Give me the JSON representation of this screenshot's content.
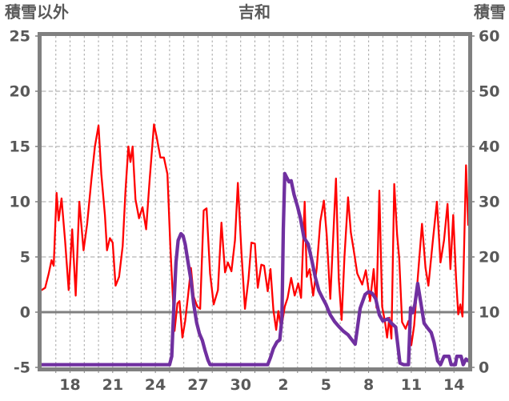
{
  "chart_data": {
    "type": "line",
    "title": "吉和",
    "left_axis": {
      "label": "積雪以外",
      "min": -5,
      "max": 25,
      "ticks": [
        25,
        20,
        15,
        10,
        5,
        0,
        -5
      ]
    },
    "right_axis": {
      "label": "積雪",
      "min": 0,
      "max": 60,
      "ticks": [
        60,
        50,
        40,
        30,
        20,
        10,
        0
      ]
    },
    "x_axis": {
      "domain_start": 16,
      "domain_end": 46,
      "day_grid_step": 1,
      "tick_labels": [
        {
          "day": 18,
          "label": "18"
        },
        {
          "day": 21,
          "label": "21"
        },
        {
          "day": 24,
          "label": "24"
        },
        {
          "day": 27,
          "label": "27"
        },
        {
          "day": 30,
          "label": "30"
        },
        {
          "day": 33,
          "label": "2"
        },
        {
          "day": 36,
          "label": "5"
        },
        {
          "day": 39,
          "label": "8"
        },
        {
          "day": 42,
          "label": "11"
        },
        {
          "day": 45,
          "label": "14"
        }
      ]
    },
    "grid": {
      "h_dashed_left_values": [
        20,
        15,
        10,
        5
      ],
      "zero_line_left": 0
    },
    "colors": {
      "frame": "#808080",
      "grid": "#a3a3a3",
      "zero_line": "#808080",
      "text": "#595959",
      "background": "#ffffff",
      "temperature": "#ff0000",
      "snow": "#7030a0"
    },
    "series": [
      {
        "name": "積雪以外",
        "axis": "left",
        "color_key": "temperature",
        "width": 2.3,
        "points": [
          [
            16.0,
            2.0
          ],
          [
            16.25,
            2.2
          ],
          [
            16.5,
            3.5
          ],
          [
            16.7,
            4.7
          ],
          [
            16.85,
            4.2
          ],
          [
            17.05,
            10.8
          ],
          [
            17.2,
            8.3
          ],
          [
            17.4,
            10.3
          ],
          [
            17.65,
            6.5
          ],
          [
            17.9,
            2.0
          ],
          [
            18.15,
            7.5
          ],
          [
            18.4,
            1.5
          ],
          [
            18.65,
            10.0
          ],
          [
            18.95,
            5.6
          ],
          [
            19.2,
            8.0
          ],
          [
            19.5,
            12.0
          ],
          [
            19.75,
            15.0
          ],
          [
            20.0,
            16.9
          ],
          [
            20.2,
            12.5
          ],
          [
            20.45,
            8.8
          ],
          [
            20.6,
            5.6
          ],
          [
            20.8,
            6.7
          ],
          [
            21.0,
            6.3
          ],
          [
            21.2,
            2.4
          ],
          [
            21.45,
            3.2
          ],
          [
            21.7,
            6.0
          ],
          [
            21.9,
            11.0
          ],
          [
            22.1,
            15.0
          ],
          [
            22.25,
            13.6
          ],
          [
            22.4,
            15.0
          ],
          [
            22.6,
            10.2
          ],
          [
            22.85,
            8.5
          ],
          [
            23.1,
            9.5
          ],
          [
            23.35,
            7.5
          ],
          [
            23.6,
            12.0
          ],
          [
            23.9,
            17.0
          ],
          [
            24.1,
            15.8
          ],
          [
            24.35,
            14.0
          ],
          [
            24.6,
            14.0
          ],
          [
            24.85,
            12.5
          ],
          [
            25.05,
            6.0
          ],
          [
            25.35,
            -1.7
          ],
          [
            25.55,
            0.8
          ],
          [
            25.7,
            1.0
          ],
          [
            25.9,
            -2.3
          ],
          [
            26.1,
            -0.8
          ],
          [
            26.3,
            1.5
          ],
          [
            26.5,
            4.0
          ],
          [
            26.7,
            1.4
          ],
          [
            26.95,
            0.5
          ],
          [
            27.15,
            0.3
          ],
          [
            27.4,
            9.2
          ],
          [
            27.6,
            9.4
          ],
          [
            27.85,
            3.5
          ],
          [
            28.1,
            0.7
          ],
          [
            28.4,
            2.0
          ],
          [
            28.65,
            8.1
          ],
          [
            28.9,
            3.6
          ],
          [
            29.1,
            4.5
          ],
          [
            29.35,
            3.7
          ],
          [
            29.6,
            6.5
          ],
          [
            29.8,
            11.7
          ],
          [
            30.05,
            5.5
          ],
          [
            30.3,
            0.3
          ],
          [
            30.55,
            3.0
          ],
          [
            30.75,
            6.3
          ],
          [
            31.0,
            6.2
          ],
          [
            31.2,
            2.2
          ],
          [
            31.45,
            4.3
          ],
          [
            31.65,
            4.2
          ],
          [
            31.9,
            1.9
          ],
          [
            32.1,
            3.9
          ],
          [
            32.3,
            0.2
          ],
          [
            32.5,
            -1.6
          ],
          [
            32.65,
            0.1
          ],
          [
            32.85,
            -1.5
          ],
          [
            33.1,
            0.5
          ],
          [
            33.3,
            1.3
          ],
          [
            33.55,
            3.1
          ],
          [
            33.8,
            1.5
          ],
          [
            34.05,
            2.6
          ],
          [
            34.25,
            1.3
          ],
          [
            34.5,
            10.0
          ],
          [
            34.65,
            3.2
          ],
          [
            34.85,
            3.9
          ],
          [
            35.1,
            1.5
          ],
          [
            35.35,
            4.0
          ],
          [
            35.6,
            8.2
          ],
          [
            35.85,
            10.1
          ],
          [
            36.05,
            7.0
          ],
          [
            36.3,
            1.2
          ],
          [
            36.7,
            12.1
          ],
          [
            36.9,
            3.0
          ],
          [
            37.1,
            -0.7
          ],
          [
            37.3,
            5.0
          ],
          [
            37.55,
            10.4
          ],
          [
            37.75,
            7.2
          ],
          [
            37.95,
            5.6
          ],
          [
            38.2,
            3.5
          ],
          [
            38.55,
            2.5
          ],
          [
            38.8,
            3.8
          ],
          [
            39.1,
            1.0
          ],
          [
            39.35,
            3.9
          ],
          [
            39.55,
            0.4
          ],
          [
            39.75,
            11.0
          ],
          [
            39.95,
            0.5
          ],
          [
            40.15,
            -0.9
          ],
          [
            40.3,
            -2.3
          ],
          [
            40.45,
            -0.5
          ],
          [
            40.6,
            -2.4
          ],
          [
            40.8,
            11.6
          ],
          [
            41.0,
            7.0
          ],
          [
            41.15,
            4.9
          ],
          [
            41.35,
            -0.9
          ],
          [
            41.6,
            -1.5
          ],
          [
            41.8,
            -0.8
          ],
          [
            42.0,
            -3.0
          ],
          [
            42.2,
            -1.2
          ],
          [
            42.45,
            3.0
          ],
          [
            42.75,
            8.0
          ],
          [
            43.0,
            4.0
          ],
          [
            43.2,
            2.4
          ],
          [
            43.5,
            6.3
          ],
          [
            43.8,
            10.0
          ],
          [
            44.05,
            4.5
          ],
          [
            44.3,
            6.5
          ],
          [
            44.55,
            9.8
          ],
          [
            44.75,
            3.9
          ],
          [
            44.95,
            8.8
          ],
          [
            45.15,
            3.0
          ],
          [
            45.3,
            -0.2
          ],
          [
            45.45,
            0.7
          ],
          [
            45.6,
            -0.4
          ],
          [
            45.85,
            13.3
          ],
          [
            46.0,
            7.9
          ]
        ]
      },
      {
        "name": "積雪",
        "axis": "right",
        "color_key": "snow",
        "width": 4.3,
        "points": [
          [
            16.0,
            0.5
          ],
          [
            25.0,
            0.5
          ],
          [
            25.15,
            2.0
          ],
          [
            25.3,
            11.0
          ],
          [
            25.45,
            19.0
          ],
          [
            25.6,
            23.0
          ],
          [
            25.8,
            24.2
          ],
          [
            25.95,
            23.8
          ],
          [
            26.1,
            22.3
          ],
          [
            26.3,
            19.0
          ],
          [
            26.5,
            15.8
          ],
          [
            26.7,
            11.4
          ],
          [
            26.9,
            8.1
          ],
          [
            27.1,
            6.1
          ],
          [
            27.3,
            4.9
          ],
          [
            27.5,
            3.0
          ],
          [
            27.7,
            1.3
          ],
          [
            27.85,
            0.5
          ],
          [
            31.9,
            0.5
          ],
          [
            32.1,
            1.8
          ],
          [
            32.3,
            3.4
          ],
          [
            32.55,
            4.6
          ],
          [
            32.75,
            5.0
          ],
          [
            32.9,
            9.0
          ],
          [
            33.0,
            25.0
          ],
          [
            33.1,
            35.1
          ],
          [
            33.25,
            34.3
          ],
          [
            33.4,
            33.6
          ],
          [
            33.55,
            33.8
          ],
          [
            33.75,
            31.3
          ],
          [
            34.0,
            29.1
          ],
          [
            34.2,
            27.0
          ],
          [
            34.45,
            23.5
          ],
          [
            34.75,
            22.3
          ],
          [
            35.0,
            19.4
          ],
          [
            35.25,
            16.3
          ],
          [
            35.5,
            13.9
          ],
          [
            35.75,
            12.6
          ],
          [
            36.0,
            11.4
          ],
          [
            36.3,
            9.5
          ],
          [
            36.6,
            8.3
          ],
          [
            36.9,
            7.4
          ],
          [
            37.2,
            6.6
          ],
          [
            37.55,
            5.9
          ],
          [
            38.05,
            4.2
          ],
          [
            38.4,
            10.7
          ],
          [
            38.75,
            13.2
          ],
          [
            39.0,
            13.7
          ],
          [
            39.25,
            13.4
          ],
          [
            39.5,
            12.4
          ],
          [
            39.75,
            9.5
          ],
          [
            40.0,
            8.4
          ],
          [
            40.35,
            8.8
          ],
          [
            40.6,
            8.0
          ],
          [
            40.9,
            7.3
          ],
          [
            41.05,
            4.0
          ],
          [
            41.2,
            0.8
          ],
          [
            41.45,
            0.5
          ],
          [
            41.8,
            0.5
          ],
          [
            41.95,
            10.8
          ],
          [
            42.1,
            9.9
          ],
          [
            42.25,
            11.4
          ],
          [
            42.45,
            15.2
          ],
          [
            42.65,
            12.0
          ],
          [
            42.9,
            8.0
          ],
          [
            43.15,
            7.1
          ],
          [
            43.4,
            6.3
          ],
          [
            43.6,
            4.5
          ],
          [
            43.85,
            1.2
          ],
          [
            44.05,
            0.5
          ],
          [
            44.3,
            2.0
          ],
          [
            44.65,
            2.0
          ],
          [
            44.8,
            0.5
          ],
          [
            45.1,
            0.5
          ],
          [
            45.2,
            2.0
          ],
          [
            45.5,
            2.0
          ],
          [
            45.65,
            0.5
          ],
          [
            45.85,
            1.5
          ],
          [
            46.0,
            1.2
          ]
        ]
      }
    ]
  }
}
